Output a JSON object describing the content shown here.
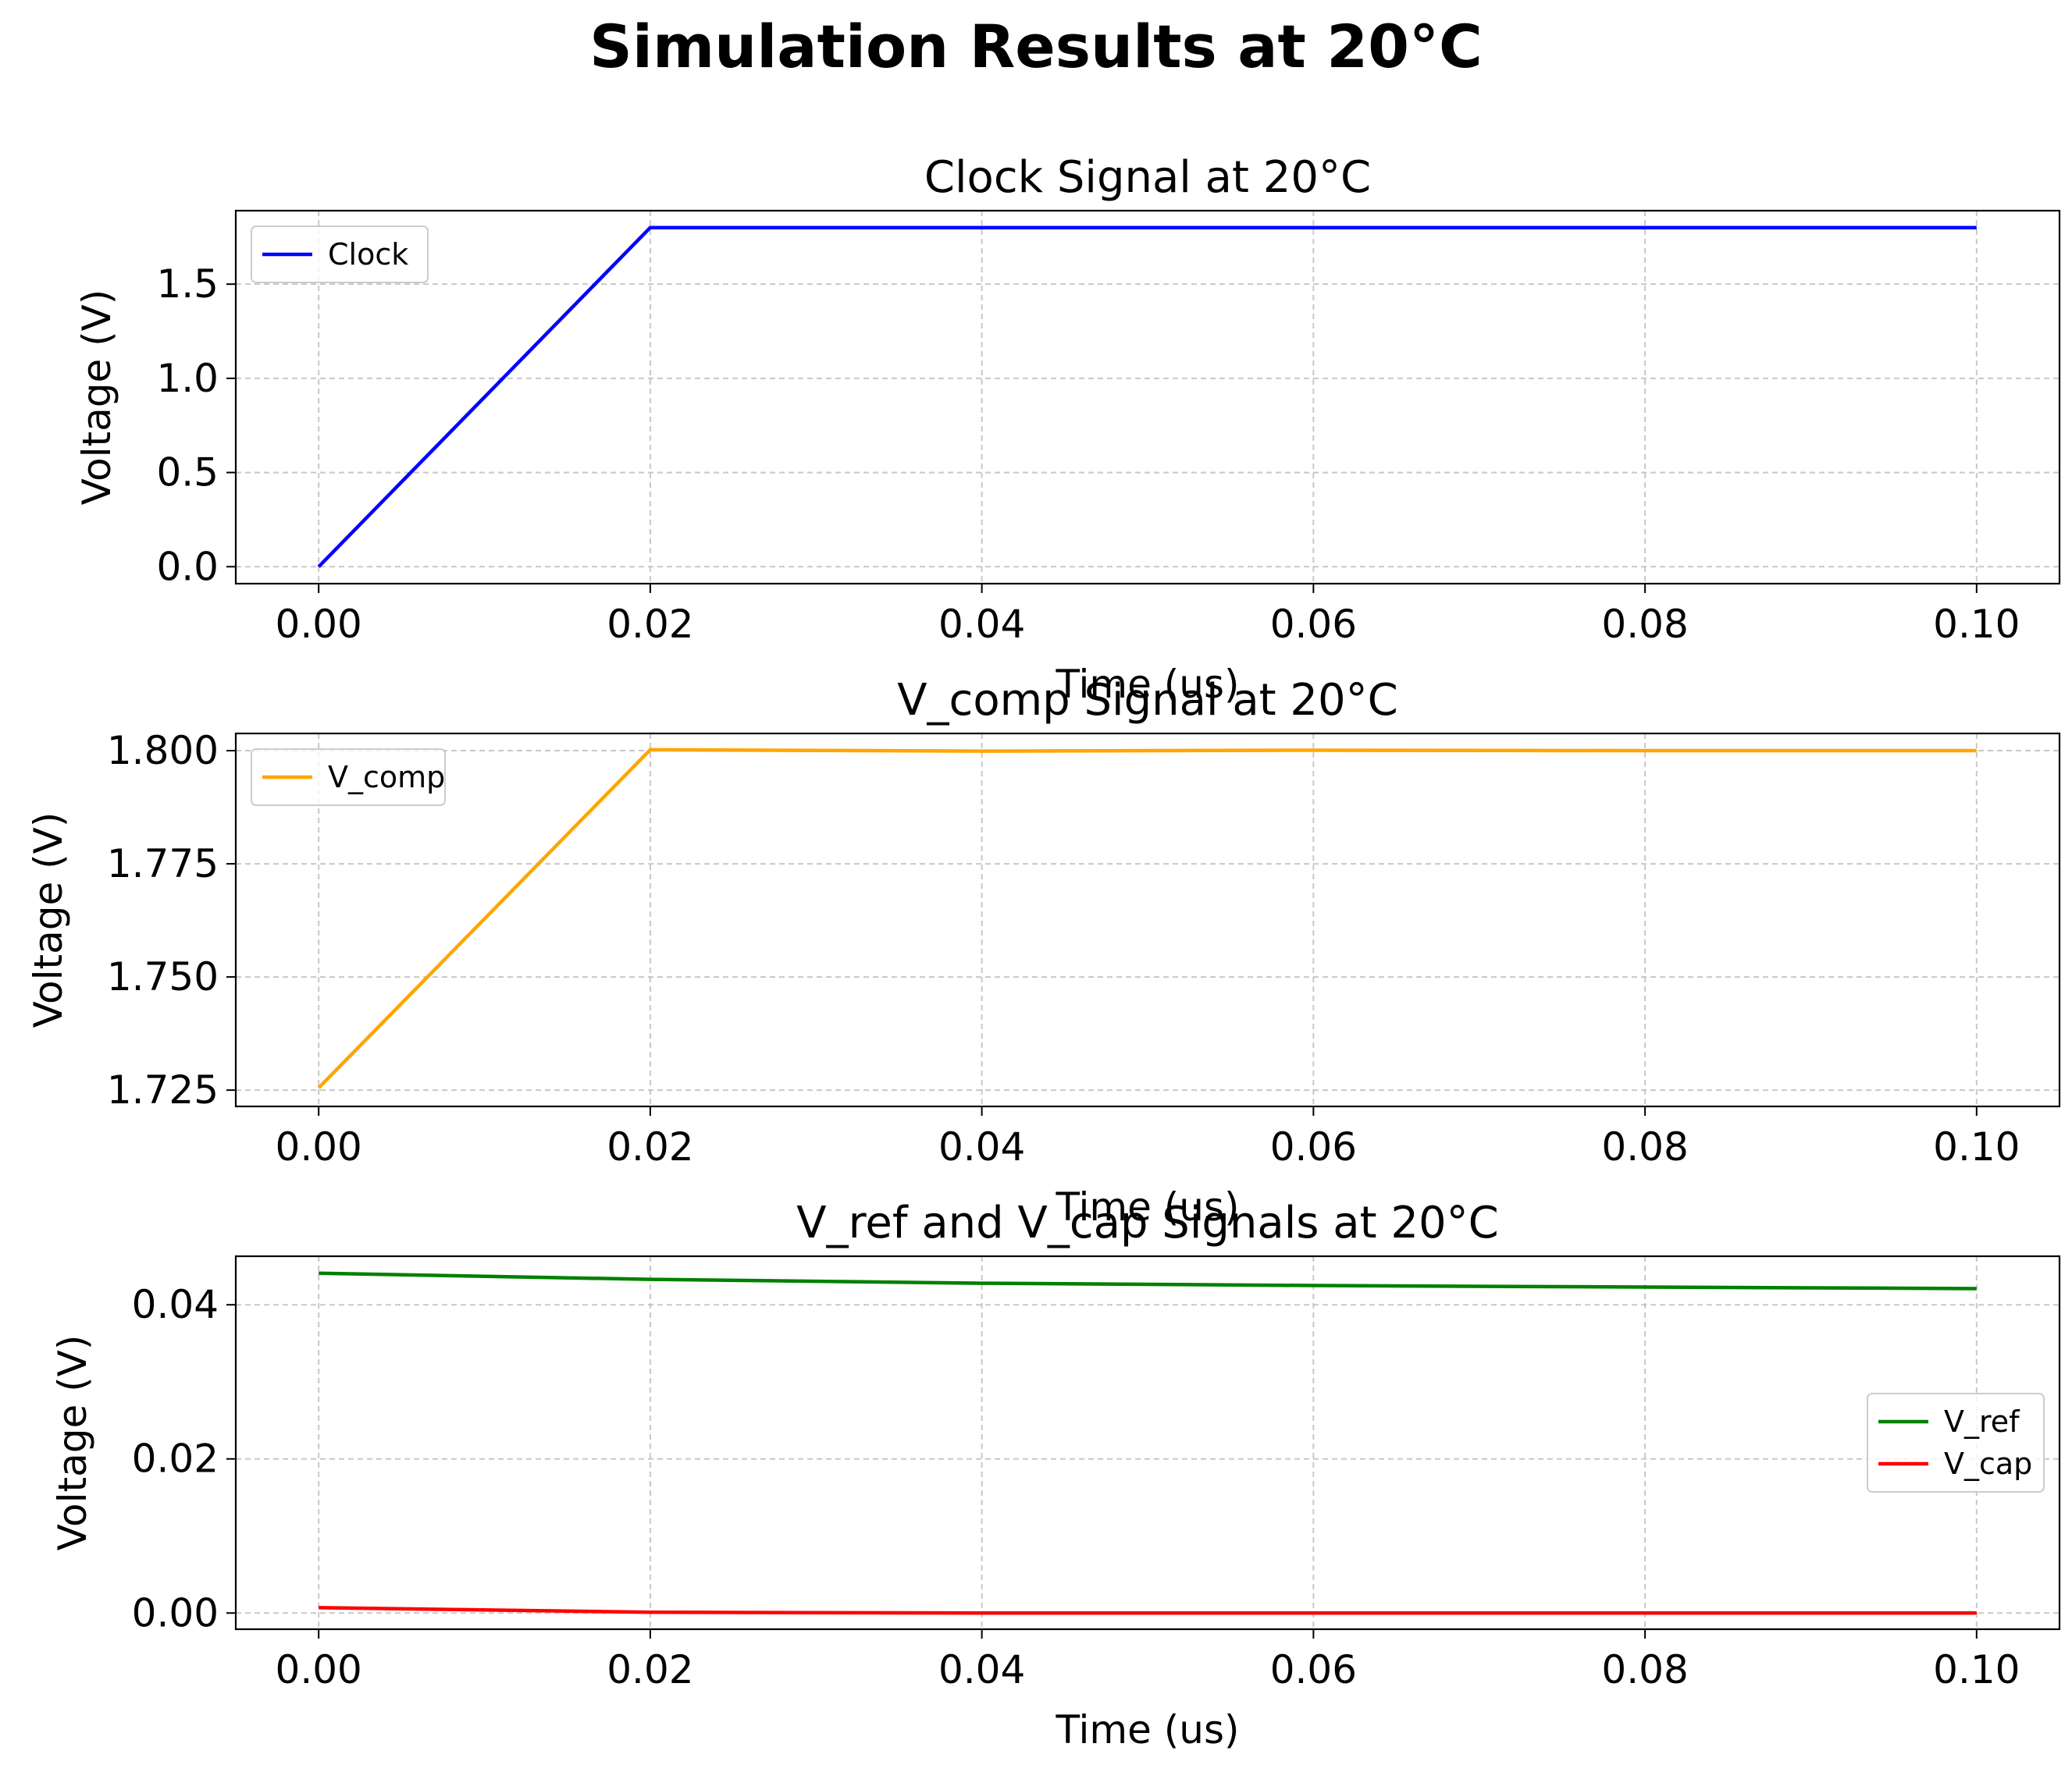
{
  "suptitle": "Simulation Results at 20°C",
  "chart_data": [
    {
      "type": "line",
      "title": "Clock Signal at 20°C",
      "xlabel": "Time (us)",
      "ylabel": "Voltage (V)",
      "xlim": [
        -0.005,
        0.105
      ],
      "ylim": [
        -0.09,
        1.89
      ],
      "xticks": [
        0.0,
        0.02,
        0.04,
        0.06,
        0.08,
        0.1
      ],
      "xtick_labels": [
        "0.00",
        "0.02",
        "0.04",
        "0.06",
        "0.08",
        "0.10"
      ],
      "yticks": [
        0.0,
        0.5,
        1.0,
        1.5
      ],
      "ytick_labels": [
        "0.0",
        "0.5",
        "1.0",
        "1.5"
      ],
      "grid": true,
      "legend_position": "upper left",
      "series": [
        {
          "name": "Clock",
          "color": "#0000ff",
          "x": [
            0.0,
            0.02,
            0.04,
            0.06,
            0.08,
            0.1
          ],
          "y": [
            0.0,
            1.8,
            1.8,
            1.8,
            1.8,
            1.8
          ]
        }
      ]
    },
    {
      "type": "line",
      "title": "V_comp Signal at 20°C",
      "xlabel": "Time (us)",
      "ylabel": "Voltage (V)",
      "xlim": [
        -0.005,
        0.105
      ],
      "ylim": [
        1.7214,
        1.8038
      ],
      "xticks": [
        0.0,
        0.02,
        0.04,
        0.06,
        0.08,
        0.1
      ],
      "xtick_labels": [
        "0.00",
        "0.02",
        "0.04",
        "0.06",
        "0.08",
        "0.10"
      ],
      "yticks": [
        1.725,
        1.75,
        1.775,
        1.8
      ],
      "ytick_labels": [
        "1.725",
        "1.750",
        "1.775",
        "1.800"
      ],
      "grid": true,
      "legend_position": "upper left",
      "series": [
        {
          "name": "V_comp",
          "color": "#ffa500",
          "x": [
            0.0,
            0.02,
            0.04,
            0.06,
            0.08,
            0.1
          ],
          "y": [
            1.7255,
            1.8002,
            1.7999,
            1.8001,
            1.8,
            1.8
          ]
        }
      ]
    },
    {
      "type": "line",
      "title": "V_ref and V_cap Signals at 20°C",
      "xlabel": "Time (us)",
      "ylabel": "Voltage (V)",
      "xlim": [
        -0.005,
        0.105
      ],
      "ylim": [
        -0.0021,
        0.0463
      ],
      "xticks": [
        0.0,
        0.02,
        0.04,
        0.06,
        0.08,
        0.1
      ],
      "xtick_labels": [
        "0.00",
        "0.02",
        "0.04",
        "0.06",
        "0.08",
        "0.10"
      ],
      "yticks": [
        0.0,
        0.02,
        0.04
      ],
      "ytick_labels": [
        "0.00",
        "0.02",
        "0.04"
      ],
      "grid": true,
      "legend_position": "center right",
      "series": [
        {
          "name": "V_ref",
          "color": "#008000",
          "x": [
            0.0,
            0.02,
            0.04,
            0.06,
            0.08,
            0.1
          ],
          "y": [
            0.0441,
            0.0433,
            0.0428,
            0.0425,
            0.0423,
            0.0421
          ]
        },
        {
          "name": "V_cap",
          "color": "#ff0000",
          "x": [
            0.0,
            0.02,
            0.04,
            0.06,
            0.08,
            0.1
          ],
          "y": [
            0.0007,
            0.0001,
            0.0,
            0.0,
            0.0,
            0.0
          ]
        }
      ]
    }
  ]
}
